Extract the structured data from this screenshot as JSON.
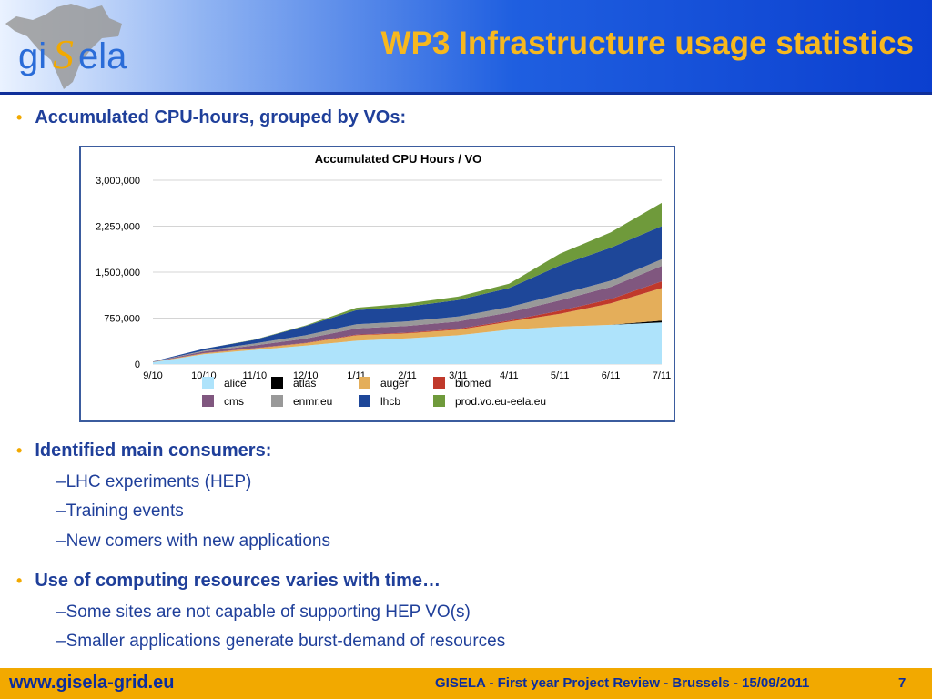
{
  "header": {
    "logo_text_left": "gi",
    "logo_text_s": "S",
    "logo_text_right": "ela",
    "title": "WP3 Infrastructure usage statistics"
  },
  "bullets": [
    {
      "text": "Accumulated CPU-hours, grouped by VOs:"
    },
    {
      "text": "Identified main consumers:",
      "subs": [
        "LHC experiments (HEP)",
        "Training events",
        "New comers with new applications"
      ]
    },
    {
      "text": "Use of computing resources varies with time…",
      "subs": [
        "Some sites are not capable of supporting HEP VO(s)",
        "Smaller applications generate burst-demand of resources"
      ]
    }
  ],
  "footer": {
    "url": "www.gisela-grid.eu",
    "text": "GISELA - First year Project Review - Brussels - 15/09/2011",
    "page": "7"
  },
  "chart_data": {
    "type": "area",
    "title": "Accumulated CPU Hours / VO",
    "x": [
      "9/10",
      "10/10",
      "11/10",
      "12/10",
      "1/11",
      "2/11",
      "3/11",
      "4/11",
      "5/11",
      "6/11",
      "7/11"
    ],
    "y_ticks": [
      "0",
      "750,000",
      "1,500,000",
      "2,250,000",
      "3,000,000"
    ],
    "ylim": [
      0,
      3000000
    ],
    "grid": true,
    "stacked": true,
    "legend_position": "bottom",
    "series": [
      {
        "name": "alice",
        "color": "#aee3fb",
        "values": [
          30000,
          160000,
          230000,
          300000,
          380000,
          420000,
          470000,
          560000,
          610000,
          640000,
          680000
        ]
      },
      {
        "name": "atlas",
        "color": "#000000",
        "values": [
          0,
          0,
          0,
          0,
          0,
          0,
          0,
          0,
          0,
          0,
          30000
        ]
      },
      {
        "name": "auger",
        "color": "#e4ae5a",
        "values": [
          2000,
          15000,
          25000,
          40000,
          90000,
          80000,
          90000,
          130000,
          210000,
          350000,
          530000
        ]
      },
      {
        "name": "biomed",
        "color": "#c0392b",
        "values": [
          0,
          3000,
          5000,
          5000,
          10000,
          12000,
          15000,
          20000,
          50000,
          70000,
          110000
        ]
      },
      {
        "name": "cms",
        "color": "#80577f",
        "values": [
          5000,
          25000,
          45000,
          70000,
          100000,
          110000,
          120000,
          130000,
          170000,
          200000,
          250000
        ]
      },
      {
        "name": "enmr.eu",
        "color": "#999999",
        "values": [
          0,
          15000,
          30000,
          55000,
          70000,
          75000,
          80000,
          90000,
          100000,
          100000,
          110000
        ]
      },
      {
        "name": "lhcb",
        "color": "#1e4799",
        "values": [
          5000,
          30000,
          60000,
          150000,
          230000,
          240000,
          270000,
          310000,
          470000,
          540000,
          540000
        ]
      },
      {
        "name": "prod.vo.eu-eela.eu",
        "color": "#6f9a3b",
        "values": [
          0,
          0,
          5000,
          10000,
          40000,
          50000,
          55000,
          70000,
          190000,
          250000,
          380000
        ]
      }
    ]
  }
}
